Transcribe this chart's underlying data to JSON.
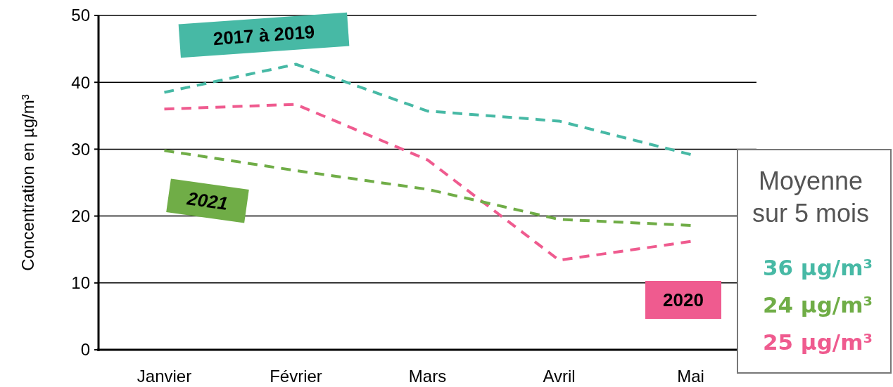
{
  "chart_data": {
    "type": "line",
    "ylabel": "Concentration en µg/m³",
    "categories": [
      "Janvier",
      "Février",
      "Mars",
      "Avril",
      "Mai"
    ],
    "ylim": [
      0,
      50
    ],
    "yticks": [
      0,
      10,
      20,
      30,
      40,
      50
    ],
    "grid": "y",
    "line_style": "dashed",
    "marker": "none",
    "series": [
      {
        "name": "2017 à 2019",
        "color": "#47b9a5",
        "values": [
          38.5,
          42.7,
          35.7,
          34.2,
          29.2
        ]
      },
      {
        "name": "2020",
        "color": "#ef5b8f",
        "values": [
          36.0,
          36.7,
          28.4,
          13.4,
          16.2
        ]
      },
      {
        "name": "2021",
        "color": "#70ad47",
        "values": [
          29.8,
          26.8,
          24.0,
          19.5,
          18.6
        ]
      }
    ],
    "annotations": [
      "Moyenne sur 5 mois",
      "36 µg/m³",
      "24 µg/m³",
      "25 µg/m³"
    ]
  }
}
